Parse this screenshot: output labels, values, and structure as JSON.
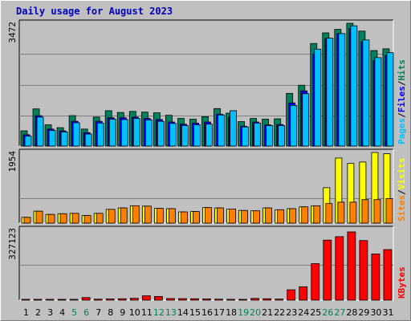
{
  "title": "Daily usage for August 2023",
  "colors": {
    "hits": "#00805c",
    "files": "#0000ff",
    "pages": "#00c0ff",
    "visits": "#ffff00",
    "sites": "#ff8000",
    "kbytes": "#ff0000",
    "plot_bg": "#c0c0c0",
    "grid": "#808080",
    "weekend_day": "#00805c",
    "weekday_day": "#000000"
  },
  "labels": {
    "hits": "Hits",
    "files": "Files",
    "pages": "Pages",
    "visits": "Visits",
    "sites": "Sites",
    "kbytes": "KBytes",
    "sep": "/"
  },
  "chart_data": [
    {
      "type": "bar",
      "name": "hits-files-pages",
      "ymax_label": "3472",
      "ylim": [
        0,
        3472
      ],
      "categories": [
        "1",
        "2",
        "3",
        "4",
        "5",
        "6",
        "7",
        "8",
        "9",
        "10",
        "11",
        "12",
        "13",
        "14",
        "15",
        "16",
        "17",
        "18",
        "19",
        "20",
        "21",
        "22",
        "23",
        "24",
        "25",
        "26",
        "27",
        "28",
        "29",
        "30",
        "31"
      ],
      "weekend": [
        "5",
        "6",
        "12",
        "13",
        "19",
        "20",
        "26",
        "27"
      ],
      "series": [
        {
          "name": "Hits",
          "values": [
            430,
            1050,
            600,
            520,
            860,
            480,
            820,
            1000,
            950,
            980,
            960,
            940,
            870,
            780,
            760,
            830,
            1060,
            930,
            690,
            780,
            760,
            770,
            1490,
            1720,
            2900,
            3200,
            3300,
            3472,
            3250,
            2700,
            2750
          ]
        },
        {
          "name": "Files",
          "values": [
            320,
            860,
            480,
            430,
            700,
            380,
            700,
            800,
            800,
            820,
            780,
            750,
            680,
            620,
            650,
            680,
            900,
            820,
            560,
            680,
            600,
            610,
            1220,
            1560,
            2600,
            3040,
            3180,
            3320,
            2950,
            2420,
            2560
          ]
        },
        {
          "name": "Pages",
          "values": [
            280,
            820,
            440,
            400,
            660,
            340,
            650,
            760,
            750,
            780,
            740,
            700,
            640,
            580,
            600,
            620,
            880,
            1000,
            540,
            650,
            580,
            580,
            1150,
            1480,
            2740,
            3050,
            3180,
            3400,
            3000,
            2500,
            2640
          ]
        }
      ]
    },
    {
      "type": "bar",
      "name": "visits-sites",
      "ymax_label": "1954",
      "ylim": [
        0,
        1954
      ],
      "categories": [
        "1",
        "2",
        "3",
        "4",
        "5",
        "6",
        "7",
        "8",
        "9",
        "10",
        "11",
        "12",
        "13",
        "14",
        "15",
        "16",
        "17",
        "18",
        "19",
        "20",
        "21",
        "22",
        "23",
        "24",
        "25",
        "26",
        "27",
        "28",
        "29",
        "30",
        "31"
      ],
      "series": [
        {
          "name": "Visits",
          "values": [
            160,
            330,
            240,
            260,
            270,
            210,
            270,
            380,
            420,
            480,
            470,
            410,
            400,
            310,
            320,
            430,
            420,
            390,
            350,
            340,
            420,
            370,
            400,
            450,
            480,
            980,
            1800,
            1650,
            1690,
            1954,
            1920
          ]
        },
        {
          "name": "Sites",
          "values": [
            160,
            330,
            240,
            260,
            270,
            210,
            270,
            380,
            420,
            480,
            470,
            410,
            400,
            310,
            320,
            430,
            420,
            390,
            350,
            340,
            420,
            370,
            400,
            450,
            480,
            540,
            580,
            580,
            650,
            650,
            680
          ]
        }
      ]
    },
    {
      "type": "bar",
      "name": "kbytes",
      "ymax_label": "327123",
      "ylim": [
        0,
        327123
      ],
      "categories": [
        "1",
        "2",
        "3",
        "4",
        "5",
        "6",
        "7",
        "8",
        "9",
        "10",
        "11",
        "12",
        "13",
        "14",
        "15",
        "16",
        "17",
        "18",
        "19",
        "20",
        "21",
        "22",
        "23",
        "24",
        "25",
        "26",
        "27",
        "28",
        "29",
        "30",
        "31"
      ],
      "series": [
        {
          "name": "KBytes",
          "values": [
            2500,
            2200,
            2400,
            2300,
            2800,
            12000,
            4500,
            5500,
            6500,
            8500,
            20000,
            17000,
            7500,
            7000,
            6500,
            5500,
            4500,
            3800,
            3500,
            8000,
            6500,
            5000,
            48000,
            62000,
            169000,
            278000,
            294000,
            316000,
            276000,
            214000,
            234000
          ]
        }
      ]
    }
  ]
}
